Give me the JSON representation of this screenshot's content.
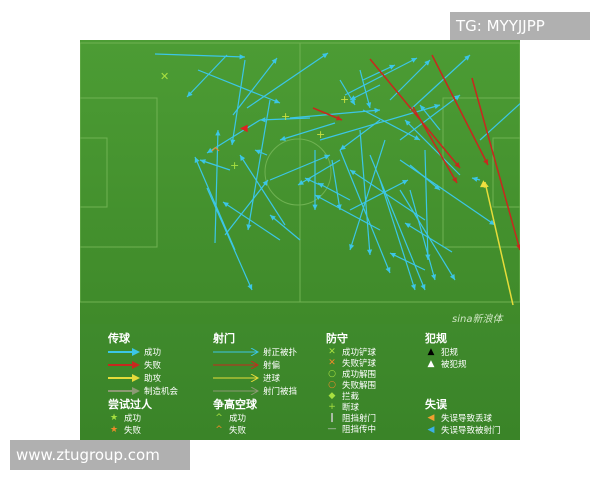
{
  "watermark_top": "TG: MYYJJPP",
  "watermark_bottom": "www.ztugroup.com",
  "pitch_logo": "sina新浪体",
  "colors": {
    "pass_success": "#3cc6e6",
    "pass_fail": "#c8281e",
    "assist": "#e6dc3a",
    "chance": "#8c9a74",
    "pitch": "#4a9a32"
  },
  "legend": {
    "passing": {
      "title": "传球",
      "items": [
        "成功",
        "失败",
        "助攻",
        "制造机会"
      ]
    },
    "shooting": {
      "title": "射门",
      "items": [
        "射正被扑",
        "射偏",
        "进球",
        "射门被挡"
      ]
    },
    "defense": {
      "title": "防守",
      "items": [
        "成功铲球",
        "失败铲球",
        "成功解围",
        "失败解围",
        "拦截",
        "断球",
        "阻挡射门",
        "阻挡传中"
      ]
    },
    "fouls": {
      "title": "犯规",
      "items": [
        "犯规",
        "被犯规"
      ]
    },
    "dribble": {
      "title": "尝试过人",
      "items": [
        "成功",
        "失败"
      ]
    },
    "aerial": {
      "title": "争高空球",
      "items": [
        "成功",
        "失败"
      ]
    },
    "errors": {
      "title": "失误",
      "items": [
        "失误导致丢球",
        "失误导致被射门"
      ]
    }
  }
}
